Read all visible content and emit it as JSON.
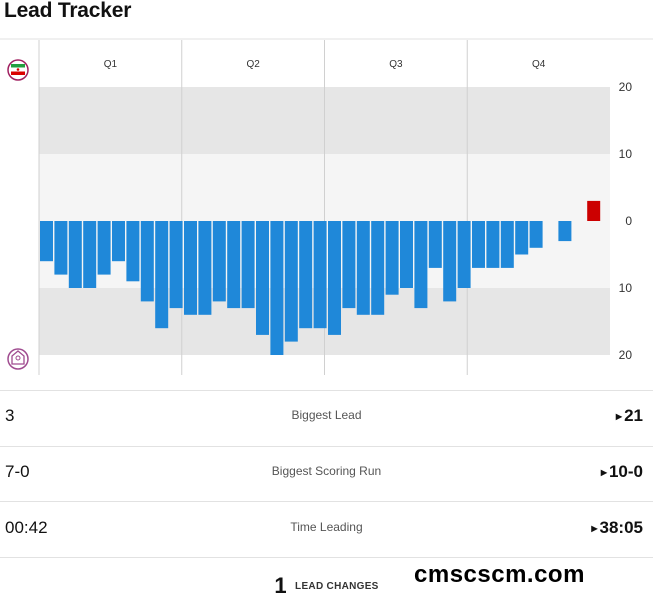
{
  "title": "Lead Tracker",
  "chart_data": {
    "type": "bar",
    "quarters": [
      "Q1",
      "Q2",
      "Q3",
      "Q4"
    ],
    "y_tick_labels": [
      "20",
      "10",
      "0",
      "10",
      "20"
    ],
    "ylim": [
      -20,
      20
    ],
    "top_team_color": "#cc0000",
    "bottom_team_color": "#1f88d9",
    "values": [
      -6,
      -8,
      -10,
      -10,
      -8,
      -6,
      -9,
      -12,
      -16,
      -13,
      -14,
      -14,
      -12,
      -13,
      -13,
      -17,
      -20,
      -18,
      -16,
      -16,
      -17,
      -13,
      -14,
      -14,
      -11,
      -10,
      -13,
      -7,
      -12,
      -10,
      -7,
      -7,
      -7,
      -5,
      -4,
      0,
      -3,
      0,
      3
    ]
  },
  "team_icons": {
    "top": "iran-crest-icon",
    "bottom": "opponent-crest-icon"
  },
  "stats": [
    {
      "left": "3",
      "label": "Biggest Lead",
      "right": "21"
    },
    {
      "left": "7-0",
      "label": "Biggest Scoring Run",
      "right": "10-0"
    },
    {
      "left": "00:42",
      "label": "Time Leading",
      "right": "38:05"
    }
  ],
  "lead_changes": {
    "count": "1",
    "label": "LEAD CHANGES"
  },
  "watermark": "cmscscm.com"
}
